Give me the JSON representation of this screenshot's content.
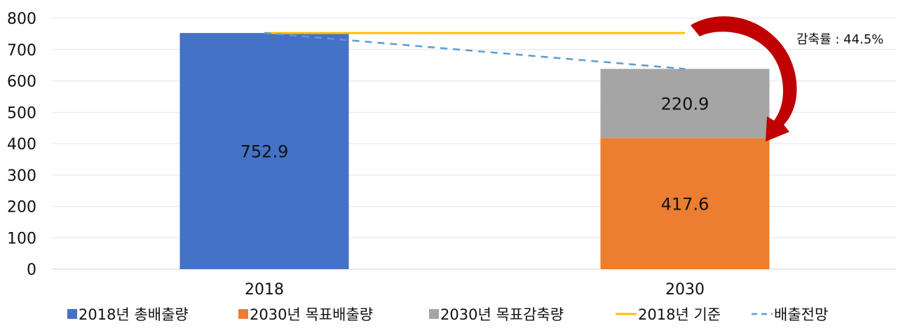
{
  "chart_data": {
    "type": "bar",
    "categories": [
      "2018",
      "2030"
    ],
    "ylim": [
      0,
      800
    ],
    "yticks": [
      0,
      100,
      200,
      300,
      400,
      500,
      600,
      700,
      800
    ],
    "grid": true,
    "series": [
      {
        "name": "2018년 총배출량",
        "color": "#4472C4",
        "values": [
          752.9,
          null
        ],
        "label": "752.9"
      },
      {
        "name": "2030년 목표배출량",
        "color": "#ED7D31",
        "values": [
          null,
          417.6
        ],
        "label": "417.6"
      },
      {
        "name": "2030년 목표감축량",
        "color": "#A5A5A5",
        "values": [
          null,
          220.9
        ],
        "label": "220.9",
        "stack_on": "2030년 목표배출량"
      }
    ],
    "lines": [
      {
        "name": "2018년 기준",
        "color": "#FFC000",
        "style": "solid",
        "values": [
          752.9,
          752.9
        ]
      },
      {
        "name": "배출전망",
        "color": "#5B9BD5",
        "style": "dashed",
        "values": [
          752.9,
          638.5
        ]
      }
    ],
    "annotation": {
      "text": "감축률 : 44.5%",
      "arrow_color": "#C00000"
    },
    "legend_position": "bottom"
  }
}
